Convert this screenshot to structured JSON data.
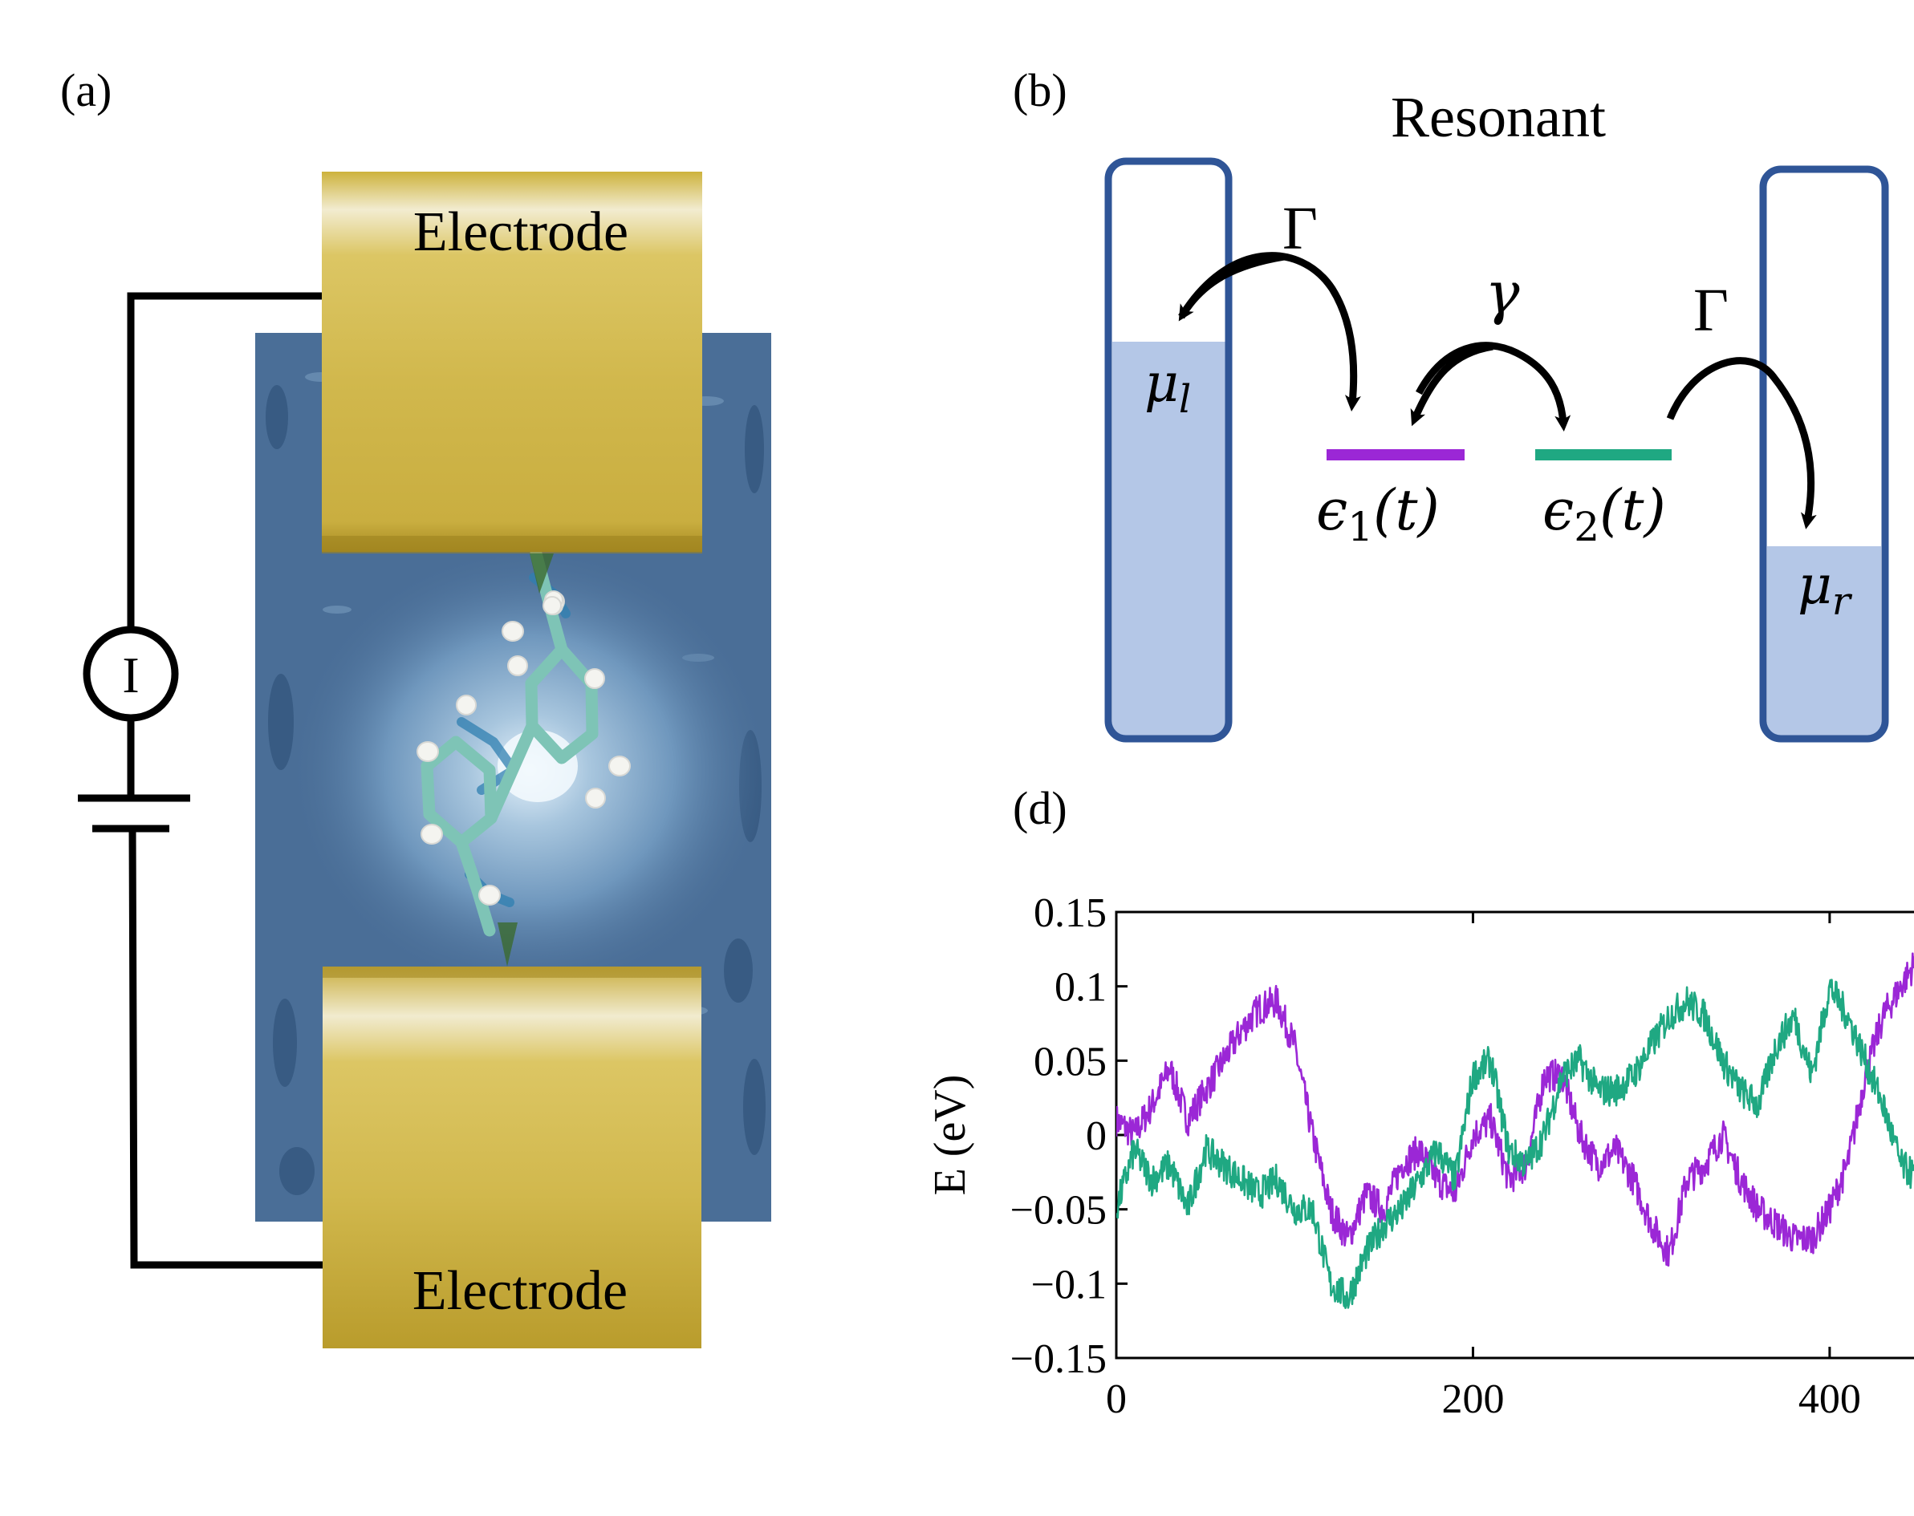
{
  "panel_labels": {
    "a": "(a)",
    "b": "(b)",
    "d": "(d)"
  },
  "panel_a": {
    "electrode_top": "Electrode",
    "electrode_bottom": "Electrode",
    "meter_symbol": "I",
    "colors": {
      "gold": "#d8c05a",
      "substrate": "#4a6e97",
      "carbon": "#7ec4b6",
      "wire": "#000000"
    }
  },
  "panel_b": {
    "title": "Resonant",
    "coupling_left": "Γ",
    "coupling_right": "Γ",
    "coupling_middle": "γ",
    "mu_left": {
      "sym": "μ",
      "sub": "l"
    },
    "mu_right": {
      "sym": "μ",
      "sub": "r"
    },
    "level1": {
      "sym": "ϵ",
      "sub": "1",
      "arg": "(t)"
    },
    "level2": {
      "sym": "ϵ",
      "sub": "2",
      "arg": "(t)"
    },
    "colors": {
      "reservoir_border": "#2f5597",
      "reservoir_fill": "#b4c7e7",
      "level1": "#9b27d6",
      "level2": "#1fa882"
    }
  },
  "panel_d": {
    "chart_data": {
      "type": "line",
      "ylabel": "E (eV)",
      "xlabel": "",
      "ylim": [
        -0.15,
        0.15
      ],
      "xlim": [
        0,
        450
      ],
      "yticks": [
        "0.15",
        "0.1",
        "0.05",
        "0",
        "−0.05",
        "−0.1",
        "−0.15"
      ],
      "ytick_values": [
        0.15,
        0.1,
        0.05,
        0,
        -0.05,
        -0.1,
        -0.15
      ],
      "xticks": [
        "0",
        "200",
        "400"
      ],
      "xtick_values": [
        0,
        200,
        400
      ],
      "series": [
        {
          "color": "#9b27d6",
          "x": [
            0,
            10,
            20,
            30,
            40,
            50,
            60,
            70,
            80,
            90,
            100,
            110,
            120,
            130,
            140,
            150,
            160,
            170,
            180,
            190,
            200,
            210,
            220,
            230,
            240,
            250,
            260,
            270,
            280,
            290,
            300,
            310,
            320,
            330,
            340,
            350,
            360,
            370,
            380,
            390,
            400,
            410,
            420,
            430,
            440,
            450
          ],
          "y": [
            0.01,
            0.0,
            0.02,
            0.045,
            0.01,
            0.03,
            0.05,
            0.07,
            0.085,
            0.09,
            0.06,
            0.0,
            -0.05,
            -0.07,
            -0.04,
            -0.05,
            -0.02,
            -0.01,
            -0.03,
            -0.04,
            0.0,
            0.01,
            -0.03,
            -0.02,
            0.04,
            0.04,
            0.0,
            -0.02,
            -0.01,
            -0.03,
            -0.06,
            -0.08,
            -0.03,
            -0.02,
            0.0,
            -0.03,
            -0.05,
            -0.06,
            -0.07,
            -0.07,
            -0.05,
            -0.02,
            0.04,
            0.08,
            0.1,
            0.12
          ]
        },
        {
          "color": "#1fa882",
          "x": [
            0,
            10,
            20,
            30,
            40,
            50,
            60,
            70,
            80,
            90,
            100,
            110,
            120,
            130,
            140,
            150,
            160,
            170,
            180,
            190,
            200,
            210,
            220,
            230,
            240,
            250,
            260,
            270,
            280,
            290,
            300,
            310,
            320,
            330,
            340,
            350,
            360,
            370,
            380,
            390,
            400,
            410,
            420,
            430,
            440,
            450
          ],
          "y": [
            -0.05,
            -0.01,
            -0.03,
            -0.02,
            -0.05,
            -0.01,
            -0.02,
            -0.03,
            -0.04,
            -0.03,
            -0.05,
            -0.05,
            -0.1,
            -0.11,
            -0.08,
            -0.06,
            -0.05,
            -0.03,
            -0.01,
            -0.03,
            0.04,
            0.05,
            -0.01,
            -0.02,
            0.0,
            0.04,
            0.05,
            0.03,
            0.03,
            0.04,
            0.06,
            0.08,
            0.09,
            0.08,
            0.05,
            0.03,
            0.02,
            0.06,
            0.08,
            0.04,
            0.1,
            0.08,
            0.05,
            0.02,
            -0.02,
            -0.03
          ]
        }
      ]
    }
  }
}
